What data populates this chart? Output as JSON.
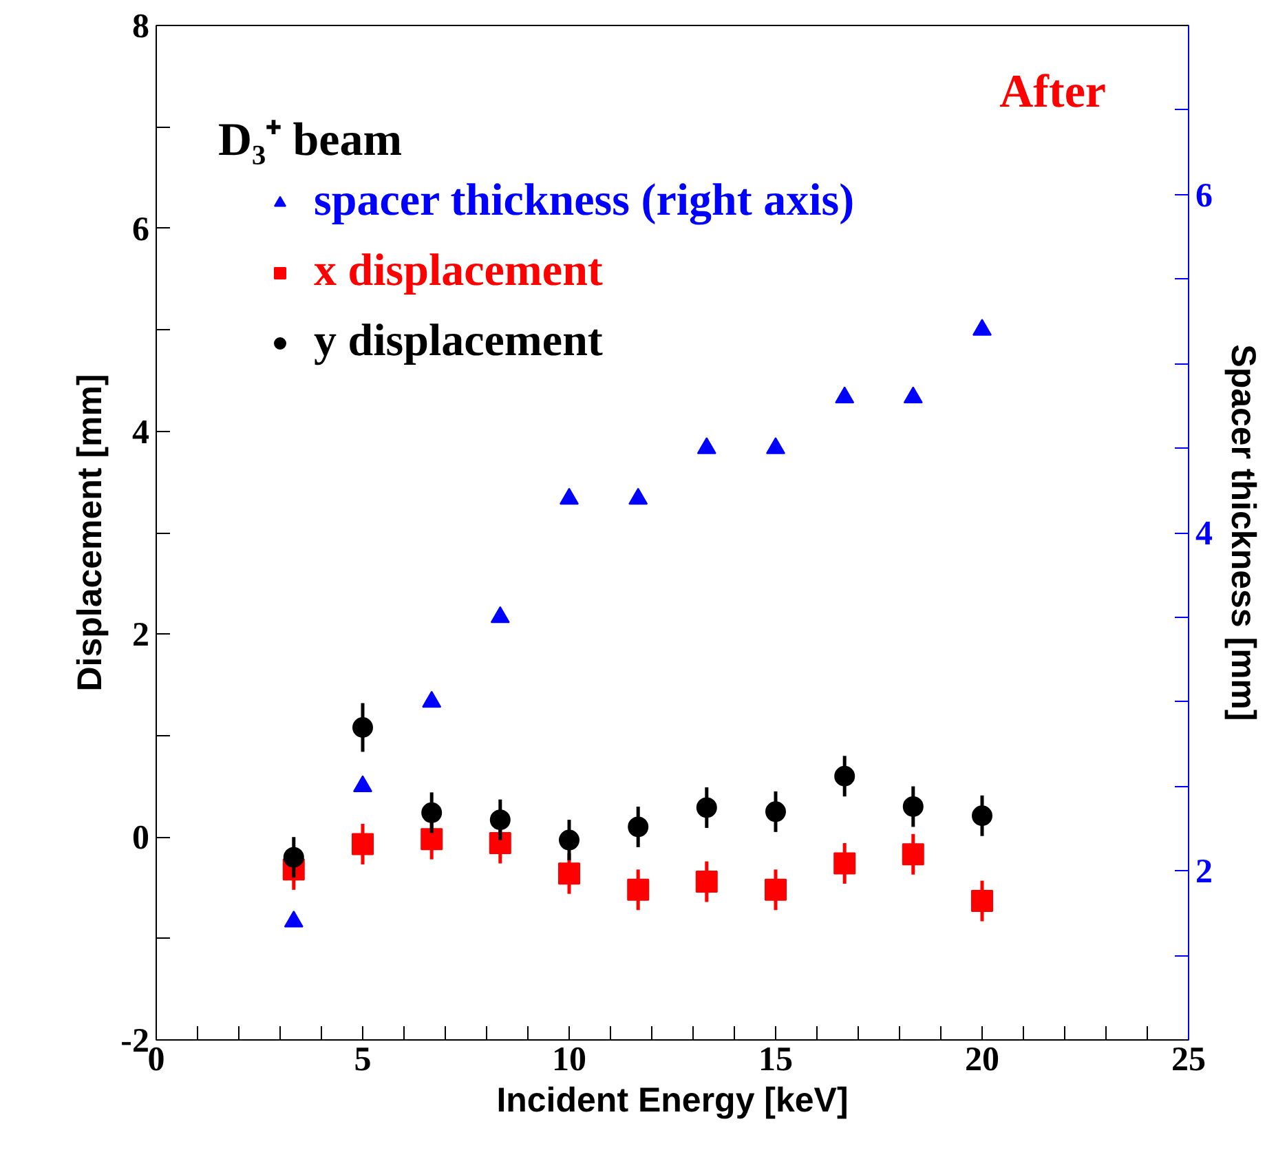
{
  "chart_data": {
    "type": "scatter",
    "xlabel": "Incident Energy [keV]",
    "ylabel": "Displacement [mm]",
    "y2label": "Spacer thickness [mm]",
    "x": [
      3.33,
      5,
      6.67,
      8.33,
      10,
      11.67,
      13.33,
      15,
      16.67,
      18.33,
      20
    ],
    "series": [
      {
        "name": "spacer thickness (right axis)",
        "color": "#0000ff",
        "marker": "triangle",
        "axis": "y2",
        "values": [
          1.7,
          2.5,
          3.0,
          3.5,
          4.2,
          4.2,
          4.5,
          4.5,
          4.8,
          4.8,
          5.2
        ]
      },
      {
        "name": "x displacement",
        "color": "#ff0000",
        "marker": "square",
        "values": [
          -0.32,
          -0.07,
          -0.02,
          -0.06,
          -0.36,
          -0.52,
          -0.44,
          -0.52,
          -0.26,
          -0.17,
          -0.63
        ],
        "errors": [
          0.2,
          0.2,
          0.2,
          0.2,
          0.2,
          0.2,
          0.2,
          0.2,
          0.2,
          0.2,
          0.2
        ]
      },
      {
        "name": "y displacement",
        "color": "#000000",
        "marker": "circle",
        "values": [
          -0.2,
          1.08,
          0.24,
          0.17,
          -0.03,
          0.1,
          0.29,
          0.25,
          0.6,
          0.3,
          0.21
        ],
        "errors": [
          0.2,
          0.24,
          0.2,
          0.2,
          0.2,
          0.2,
          0.2,
          0.2,
          0.2,
          0.2,
          0.2
        ]
      }
    ],
    "xlim": [
      0,
      25
    ],
    "xticks": [
      0,
      {
        "value": 1,
        "label": null
      },
      {
        "value": 2,
        "label": null
      },
      {
        "value": 3,
        "label": null
      },
      {
        "value": 4,
        "label": null
      },
      5,
      {
        "value": 6,
        "label": null
      },
      {
        "value": 7,
        "label": null
      },
      {
        "value": 8,
        "label": null
      },
      {
        "value": 9,
        "label": null
      },
      10,
      {
        "value": 11,
        "label": null
      },
      {
        "value": 12,
        "label": null
      },
      {
        "value": 13,
        "label": null
      },
      {
        "value": 14,
        "label": null
      },
      15,
      {
        "value": 16,
        "label": null
      },
      {
        "value": 17,
        "label": null
      },
      {
        "value": 18,
        "label": null
      },
      {
        "value": 19,
        "label": null
      },
      20,
      {
        "value": 21,
        "label": null
      },
      {
        "value": 22,
        "label": null
      },
      {
        "value": 23,
        "label": null
      },
      {
        "value": 24,
        "label": null
      },
      25
    ],
    "ylim": [
      -2,
      8
    ],
    "yticks": [
      -2,
      {
        "value": -1,
        "label": null
      },
      0,
      {
        "value": 1,
        "label": null
      },
      2,
      {
        "value": 3,
        "label": null
      },
      4,
      {
        "value": 5,
        "label": null
      },
      6,
      {
        "value": 7,
        "label": null
      },
      8
    ],
    "y2lim": [
      1,
      7
    ],
    "y2ticks": [
      {
        "value": 1.5,
        "label": null
      },
      2,
      {
        "value": 2.5,
        "label": null
      },
      {
        "value": 3,
        "label": null
      },
      {
        "value": 3.5,
        "label": null
      },
      4,
      {
        "value": 4.5,
        "label": null
      },
      {
        "value": 5,
        "label": null
      },
      {
        "value": 5.5,
        "label": null
      },
      6,
      {
        "value": 6.5,
        "label": null
      }
    ],
    "annotations": [
      "D₃⁺ beam",
      "After"
    ],
    "legend": "top left",
    "grid": false
  }
}
